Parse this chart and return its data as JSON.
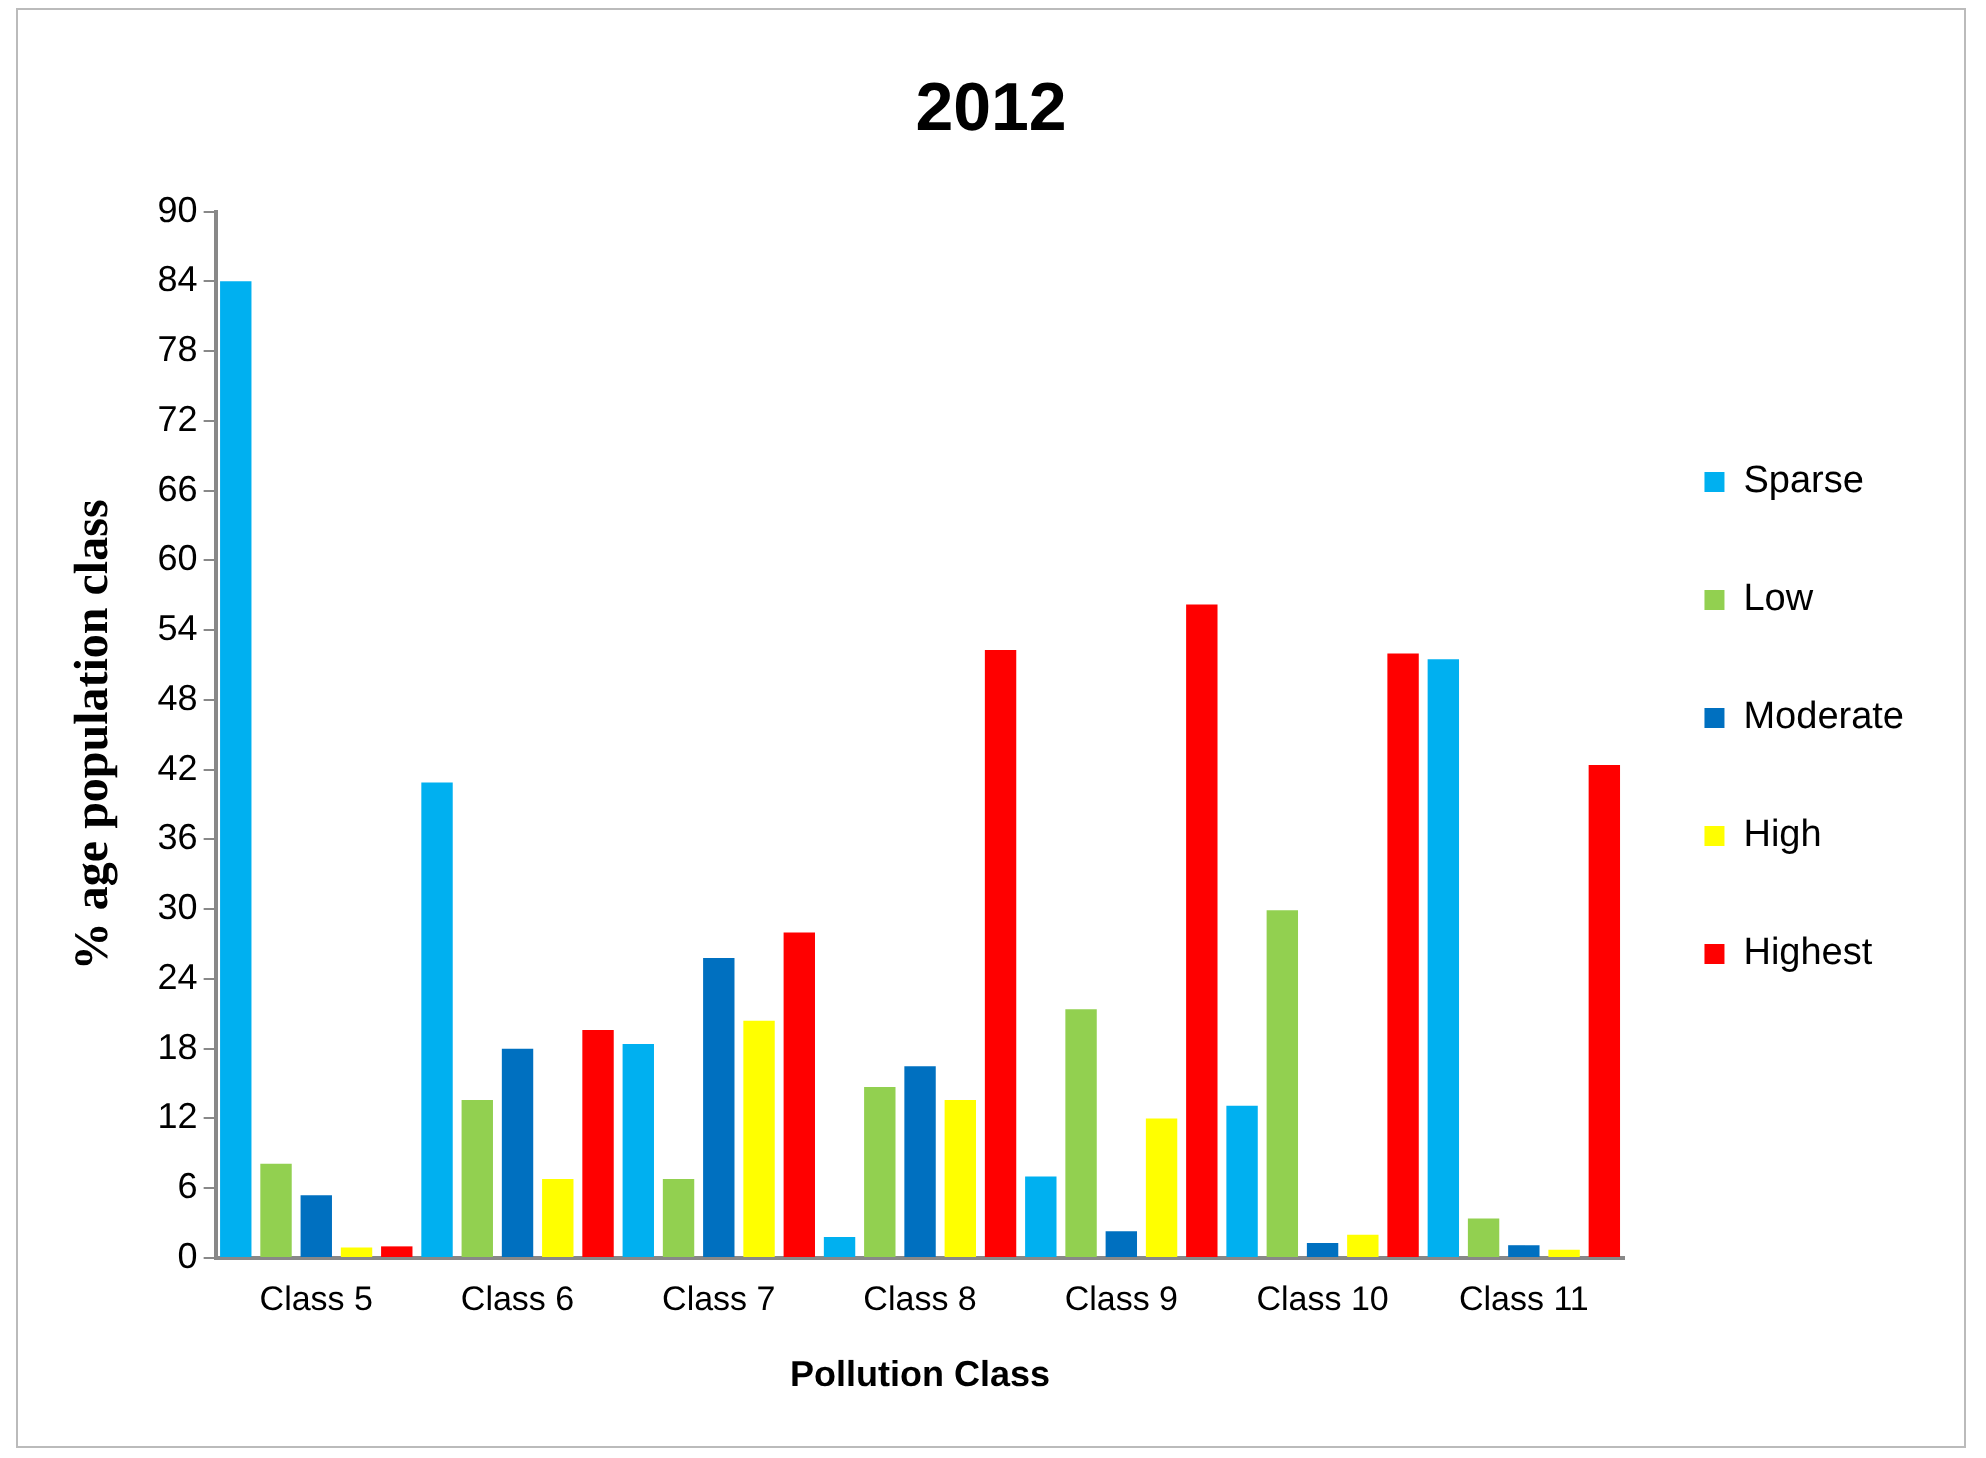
{
  "chart_data": {
    "type": "bar",
    "title": "2012",
    "xlabel": "Pollution Class",
    "ylabel": "% age population class",
    "categories": [
      "Class 5",
      "Class 6",
      "Class 7",
      "Class 8",
      "Class 9",
      "Class 10",
      "Class 11"
    ],
    "series": [
      {
        "name": "Sparse",
        "color": "#00b0f0",
        "values": [
          84,
          40.9,
          18.4,
          1.8,
          7.0,
          13.1,
          51.5
        ]
      },
      {
        "name": "Low",
        "color": "#92d050",
        "values": [
          8.1,
          13.6,
          6.8,
          14.7,
          21.4,
          29.9,
          3.4
        ]
      },
      {
        "name": "Moderate",
        "color": "#0070c0",
        "values": [
          5.4,
          18.0,
          25.8,
          16.5,
          2.3,
          1.3,
          1.1
        ]
      },
      {
        "name": "High",
        "color": "#ffff00",
        "values": [
          0.9,
          6.8,
          20.4,
          13.6,
          12.0,
          2.0,
          0.7
        ]
      },
      {
        "name": "Highest",
        "color": "#ff0000",
        "values": [
          1.0,
          19.6,
          28.0,
          52.3,
          56.2,
          52.0,
          42.4
        ]
      }
    ],
    "ylim": [
      0,
      90
    ],
    "yticks": [
      0,
      6,
      12,
      18,
      24,
      30,
      36,
      42,
      48,
      54,
      60,
      66,
      72,
      78,
      84,
      90
    ],
    "grid": false,
    "legend": "right"
  }
}
